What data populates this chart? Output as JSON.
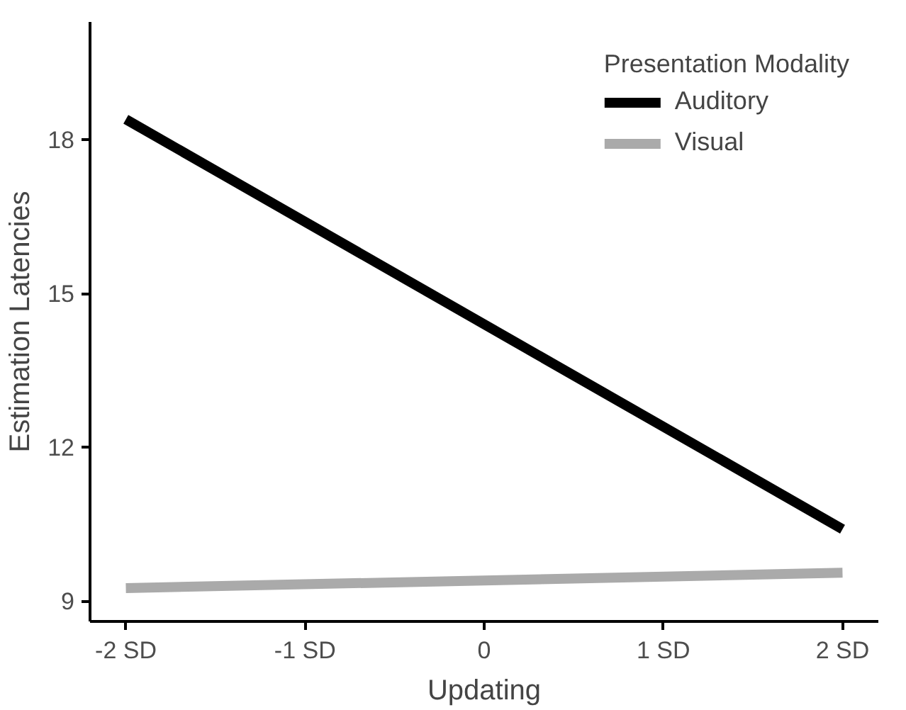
{
  "chart_data": {
    "type": "line",
    "xlabel": "Updating",
    "ylabel": "Estimation Latencies",
    "legend_title": "Presentation Modality",
    "x": [
      -2,
      2
    ],
    "series": [
      {
        "name": "Auditory",
        "color": "#000000",
        "values": [
          18.4,
          10.4
        ]
      },
      {
        "name": "Visual",
        "color": "#aaaaaa",
        "values": [
          9.25,
          9.55
        ]
      }
    ],
    "xlim": [
      -2.2,
      2.2
    ],
    "ylim": [
      8.6,
      20.3
    ],
    "xticks": [
      {
        "value": -2,
        "label": "-2 SD"
      },
      {
        "value": -1,
        "label": "-1 SD"
      },
      0,
      {
        "value": 1,
        "label": "1 SD"
      },
      {
        "value": 2,
        "label": "2 SD"
      }
    ],
    "yticks": [
      9,
      12,
      15,
      18
    ],
    "grid": false,
    "legend": "top right",
    "marker": "none",
    "line_style": "solid"
  }
}
